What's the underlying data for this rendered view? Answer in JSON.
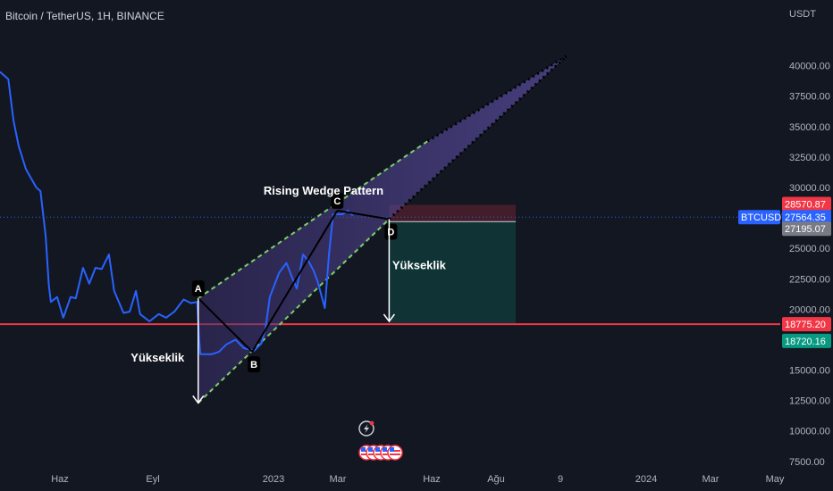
{
  "chart_data": {
    "type": "line",
    "title": "Bitcoin / TetherUS, 1H, BINANCE",
    "currency": "USDT",
    "symbol": "BTCUSDT",
    "x_ticks": [
      "Haz",
      "Eyl",
      "2023",
      "Mar",
      "Haz",
      "Ağu",
      "9",
      "2024",
      "Mar",
      "May"
    ],
    "y_ticks": [
      40000,
      37500,
      35000,
      32500,
      30000,
      27500,
      25000,
      22500,
      20000,
      17500,
      15000,
      12500,
      10000,
      7500
    ],
    "ylim": [
      6900,
      43200
    ],
    "grid": false,
    "series": [
      {
        "color": "#2962ff",
        "points": [
          [
            "2022-05-01",
            39500
          ],
          [
            "2022-05-09",
            38900
          ],
          [
            "2022-05-14",
            35500
          ],
          [
            "2022-05-19",
            33400
          ],
          [
            "2022-05-26",
            31500
          ],
          [
            "2022-06-05",
            30000
          ],
          [
            "2022-06-09",
            29700
          ],
          [
            "2022-06-14",
            26000
          ],
          [
            "2022-06-17",
            22000
          ],
          [
            "2022-06-19",
            20600
          ],
          [
            "2022-06-25",
            21000
          ],
          [
            "2022-07-01",
            19300
          ],
          [
            "2022-07-08",
            21000
          ],
          [
            "2022-07-13",
            20900
          ],
          [
            "2022-07-20",
            23400
          ],
          [
            "2022-07-26",
            22100
          ],
          [
            "2022-08-01",
            23400
          ],
          [
            "2022-08-07",
            23300
          ],
          [
            "2022-08-14",
            24500
          ],
          [
            "2022-08-19",
            21500
          ],
          [
            "2022-08-28",
            19700
          ],
          [
            "2022-09-03",
            19800
          ],
          [
            "2022-09-09",
            21500
          ],
          [
            "2022-09-13",
            19600
          ],
          [
            "2022-09-22",
            19000
          ],
          [
            "2022-10-01",
            19600
          ],
          [
            "2022-10-08",
            19300
          ],
          [
            "2022-10-16",
            19800
          ],
          [
            "2022-10-25",
            20800
          ],
          [
            "2022-11-01",
            20500
          ],
          [
            "2022-11-07",
            20600
          ],
          [
            "2022-11-09",
            17500
          ],
          [
            "2022-11-10",
            16300
          ],
          [
            "2022-11-21",
            16300
          ],
          [
            "2022-11-28",
            16500
          ],
          [
            "2022-12-05",
            17100
          ],
          [
            "2022-12-14",
            17500
          ],
          [
            "2022-12-22",
            16800
          ],
          [
            "2023-01-01",
            16600
          ],
          [
            "2023-01-08",
            17200
          ],
          [
            "2023-01-12",
            18500
          ],
          [
            "2023-01-16",
            21000
          ],
          [
            "2023-01-25",
            23000
          ],
          [
            "2023-02-01",
            23800
          ],
          [
            "2023-02-07",
            22500
          ],
          [
            "2023-02-11",
            21700
          ],
          [
            "2023-02-17",
            24500
          ],
          [
            "2023-02-22",
            24000
          ],
          [
            "2023-02-27",
            23200
          ],
          [
            "2023-03-03",
            22300
          ],
          [
            "2023-03-10",
            20100
          ],
          [
            "2023-03-14",
            24500
          ],
          [
            "2023-03-18",
            27800
          ],
          [
            "2023-03-27",
            27800
          ],
          [
            "2023-04-01",
            28100
          ],
          [
            "2023-04-06",
            27700
          ]
        ]
      }
    ],
    "price_labels": [
      {
        "text": "28570.87",
        "value": 28570.87,
        "color": "#f23645"
      },
      {
        "text": "BTCUSDT",
        "value": 27564.35,
        "color": "#2962ff"
      },
      {
        "text": "27564.35",
        "value": 27564.35,
        "color": "#2962ff"
      },
      {
        "text": "27195.07",
        "value": 27195.07,
        "color": "#787b86"
      },
      {
        "text": "18775.20",
        "value": 18775.2,
        "color": "#f23645"
      },
      {
        "text": "18720.16",
        "value": 18720.16,
        "color": "#089981"
      }
    ],
    "horizontal_line": {
      "value": 18775.2,
      "color": "#f23645"
    },
    "current_price_line": {
      "value": 27564.35,
      "color": "#2962ff"
    },
    "pattern_points": [
      {
        "label": "A",
        "date": "2022-11-08",
        "price": 20900
      },
      {
        "label": "B",
        "date": "2022-12-30",
        "price": 16500
      },
      {
        "label": "C",
        "date": "2023-03-22",
        "price": 28100
      },
      {
        "label": "D",
        "date": "2023-05-11",
        "price": 27400
      }
    ],
    "wedge": {
      "upper": [
        [
          "2022-11-08",
          20900
        ],
        [
          "2023-06-17",
          33800
        ]
      ],
      "lower": [
        [
          "2022-11-08",
          12300
        ],
        [
          "2023-05-11",
          27400
        ]
      ],
      "upper_ext": [
        [
          "2023-06-17",
          33800
        ],
        [
          "2023-10-29",
          40800
        ]
      ],
      "lower_ext": [
        [
          "2023-05-11",
          27400
        ],
        [
          "2023-10-29",
          40800
        ]
      ]
    },
    "height_lines": [
      {
        "date": "2022-11-08",
        "from": 20900,
        "to": 12300
      },
      {
        "date": "2023-05-11",
        "from": 27400,
        "to": 19000
      }
    ],
    "position": {
      "start": "2023-05-11",
      "end": "2023-09-10",
      "stop": 28570.87,
      "entry": 27195.07,
      "target": 18720.16
    },
    "annotations": [
      {
        "text": "Rising Wedge Pattern",
        "date": "2023-01-10",
        "price": 29400
      },
      {
        "text": "Yükseklik",
        "date": "2022-09-04",
        "price": 15700
      },
      {
        "text": "Yükseklik",
        "date": "2023-05-14",
        "price": 23300
      }
    ],
    "icons": [
      "flash-icon",
      "us-flag-icon"
    ]
  }
}
